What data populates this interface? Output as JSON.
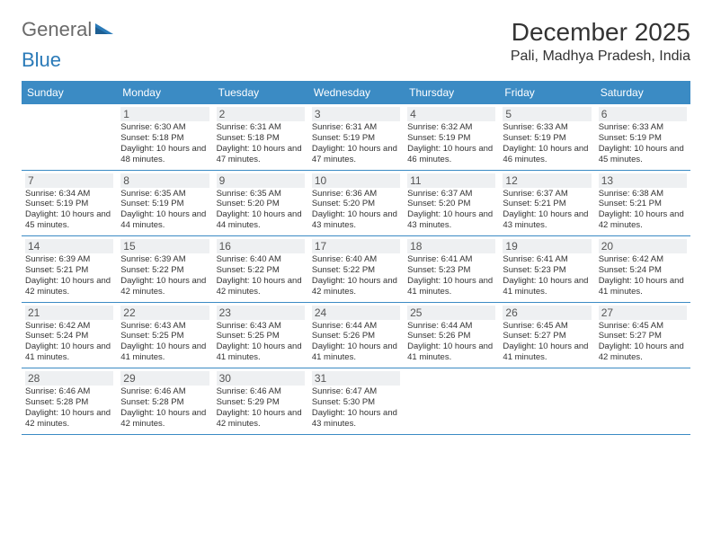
{
  "logo": {
    "part1": "General",
    "part2": "Blue"
  },
  "title": "December 2025",
  "location": "Pali, Madhya Pradesh, India",
  "colors": {
    "header_bg": "#3b8bc4",
    "header_text": "#ffffff",
    "border": "#3b8bc4",
    "daynum_bg": "#eef0f2",
    "logo_gray": "#6a6a6a",
    "logo_blue": "#2a7ab8"
  },
  "weekdays": [
    "Sunday",
    "Monday",
    "Tuesday",
    "Wednesday",
    "Thursday",
    "Friday",
    "Saturday"
  ],
  "labels": {
    "sunrise": "Sunrise:",
    "sunset": "Sunset:",
    "daylight": "Daylight:"
  },
  "weeks": [
    [
      null,
      {
        "n": "1",
        "sr": "6:30 AM",
        "ss": "5:18 PM",
        "dl": "10 hours and 48 minutes."
      },
      {
        "n": "2",
        "sr": "6:31 AM",
        "ss": "5:18 PM",
        "dl": "10 hours and 47 minutes."
      },
      {
        "n": "3",
        "sr": "6:31 AM",
        "ss": "5:19 PM",
        "dl": "10 hours and 47 minutes."
      },
      {
        "n": "4",
        "sr": "6:32 AM",
        "ss": "5:19 PM",
        "dl": "10 hours and 46 minutes."
      },
      {
        "n": "5",
        "sr": "6:33 AM",
        "ss": "5:19 PM",
        "dl": "10 hours and 46 minutes."
      },
      {
        "n": "6",
        "sr": "6:33 AM",
        "ss": "5:19 PM",
        "dl": "10 hours and 45 minutes."
      }
    ],
    [
      {
        "n": "7",
        "sr": "6:34 AM",
        "ss": "5:19 PM",
        "dl": "10 hours and 45 minutes."
      },
      {
        "n": "8",
        "sr": "6:35 AM",
        "ss": "5:19 PM",
        "dl": "10 hours and 44 minutes."
      },
      {
        "n": "9",
        "sr": "6:35 AM",
        "ss": "5:20 PM",
        "dl": "10 hours and 44 minutes."
      },
      {
        "n": "10",
        "sr": "6:36 AM",
        "ss": "5:20 PM",
        "dl": "10 hours and 43 minutes."
      },
      {
        "n": "11",
        "sr": "6:37 AM",
        "ss": "5:20 PM",
        "dl": "10 hours and 43 minutes."
      },
      {
        "n": "12",
        "sr": "6:37 AM",
        "ss": "5:21 PM",
        "dl": "10 hours and 43 minutes."
      },
      {
        "n": "13",
        "sr": "6:38 AM",
        "ss": "5:21 PM",
        "dl": "10 hours and 42 minutes."
      }
    ],
    [
      {
        "n": "14",
        "sr": "6:39 AM",
        "ss": "5:21 PM",
        "dl": "10 hours and 42 minutes."
      },
      {
        "n": "15",
        "sr": "6:39 AM",
        "ss": "5:22 PM",
        "dl": "10 hours and 42 minutes."
      },
      {
        "n": "16",
        "sr": "6:40 AM",
        "ss": "5:22 PM",
        "dl": "10 hours and 42 minutes."
      },
      {
        "n": "17",
        "sr": "6:40 AM",
        "ss": "5:22 PM",
        "dl": "10 hours and 42 minutes."
      },
      {
        "n": "18",
        "sr": "6:41 AM",
        "ss": "5:23 PM",
        "dl": "10 hours and 41 minutes."
      },
      {
        "n": "19",
        "sr": "6:41 AM",
        "ss": "5:23 PM",
        "dl": "10 hours and 41 minutes."
      },
      {
        "n": "20",
        "sr": "6:42 AM",
        "ss": "5:24 PM",
        "dl": "10 hours and 41 minutes."
      }
    ],
    [
      {
        "n": "21",
        "sr": "6:42 AM",
        "ss": "5:24 PM",
        "dl": "10 hours and 41 minutes."
      },
      {
        "n": "22",
        "sr": "6:43 AM",
        "ss": "5:25 PM",
        "dl": "10 hours and 41 minutes."
      },
      {
        "n": "23",
        "sr": "6:43 AM",
        "ss": "5:25 PM",
        "dl": "10 hours and 41 minutes."
      },
      {
        "n": "24",
        "sr": "6:44 AM",
        "ss": "5:26 PM",
        "dl": "10 hours and 41 minutes."
      },
      {
        "n": "25",
        "sr": "6:44 AM",
        "ss": "5:26 PM",
        "dl": "10 hours and 41 minutes."
      },
      {
        "n": "26",
        "sr": "6:45 AM",
        "ss": "5:27 PM",
        "dl": "10 hours and 41 minutes."
      },
      {
        "n": "27",
        "sr": "6:45 AM",
        "ss": "5:27 PM",
        "dl": "10 hours and 42 minutes."
      }
    ],
    [
      {
        "n": "28",
        "sr": "6:46 AM",
        "ss": "5:28 PM",
        "dl": "10 hours and 42 minutes."
      },
      {
        "n": "29",
        "sr": "6:46 AM",
        "ss": "5:28 PM",
        "dl": "10 hours and 42 minutes."
      },
      {
        "n": "30",
        "sr": "6:46 AM",
        "ss": "5:29 PM",
        "dl": "10 hours and 42 minutes."
      },
      {
        "n": "31",
        "sr": "6:47 AM",
        "ss": "5:30 PM",
        "dl": "10 hours and 43 minutes."
      },
      null,
      null,
      null
    ]
  ]
}
